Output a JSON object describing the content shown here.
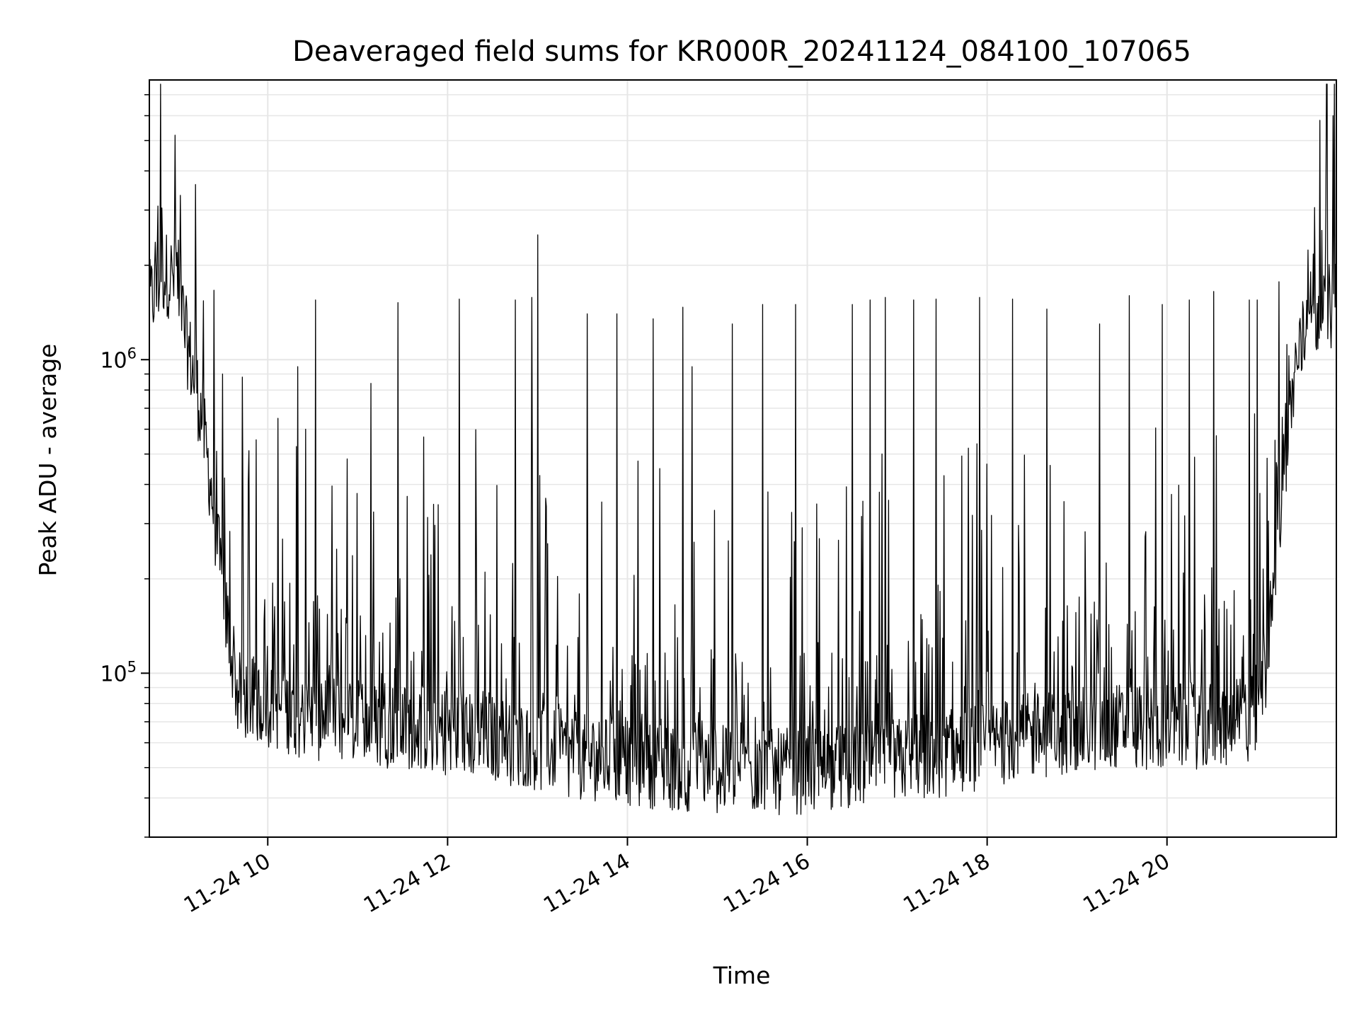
{
  "chart_data": {
    "type": "line",
    "title": "Deaveraged field sums for KR000R_20241124_084100_107065",
    "xlabel": "Time",
    "ylabel": "Peak ADU - average",
    "yscale": "log",
    "grid": true,
    "legend": "none",
    "line_color": "#000000",
    "grid_color": "#e6e6e6",
    "xlim": [
      "2024-11-24 08:41",
      "2024-11-24 21:53"
    ],
    "ylim": [
      30000,
      7800000
    ],
    "x_ticks": [
      {
        "value": "2024-11-24 10:00",
        "label": "11-24 10"
      },
      {
        "value": "2024-11-24 12:00",
        "label": "11-24 12"
      },
      {
        "value": "2024-11-24 14:00",
        "label": "11-24 14"
      },
      {
        "value": "2024-11-24 16:00",
        "label": "11-24 16"
      },
      {
        "value": "2024-11-24 18:00",
        "label": "11-24 18"
      },
      {
        "value": "2024-11-24 20:00",
        "label": "11-24 20"
      }
    ],
    "y_ticks": [
      {
        "value": 100000,
        "base": "10",
        "exp": "5"
      },
      {
        "value": 1000000,
        "base": "10",
        "exp": "6"
      }
    ],
    "baseline_profile": [
      [
        "2024-11-24 08:41",
        1500000
      ],
      [
        "2024-11-24 08:50",
        1900000
      ],
      [
        "2024-11-24 09:00",
        1800000
      ],
      [
        "2024-11-24 09:05",
        1200000
      ],
      [
        "2024-11-24 09:15",
        700000
      ],
      [
        "2024-11-24 09:22",
        400000
      ],
      [
        "2024-11-24 09:30",
        180000
      ],
      [
        "2024-11-24 09:40",
        85000
      ],
      [
        "2024-11-24 10:30",
        72000
      ],
      [
        "2024-11-24 11:30",
        68000
      ],
      [
        "2024-11-24 12:30",
        62000
      ],
      [
        "2024-11-24 13:30",
        54000
      ],
      [
        "2024-11-24 14:30",
        50000
      ],
      [
        "2024-11-24 15:30",
        48000
      ],
      [
        "2024-11-24 16:30",
        50000
      ],
      [
        "2024-11-24 17:30",
        55000
      ],
      [
        "2024-11-24 18:30",
        63000
      ],
      [
        "2024-11-24 19:30",
        68000
      ],
      [
        "2024-11-24 20:30",
        68000
      ],
      [
        "2024-11-24 21:00",
        72000
      ],
      [
        "2024-11-24 21:07",
        110000
      ],
      [
        "2024-11-24 21:12",
        220000
      ],
      [
        "2024-11-24 21:18",
        450000
      ],
      [
        "2024-11-24 21:25",
        900000
      ],
      [
        "2024-11-24 21:35",
        1400000
      ],
      [
        "2024-11-24 21:53",
        1500000
      ]
    ],
    "spikes": [
      [
        "2024-11-24 08:58",
        5200000
      ],
      [
        "2024-11-24 09:30",
        900000
      ],
      [
        "2024-11-24 09:43",
        880000
      ],
      [
        "2024-11-24 10:07",
        650000
      ],
      [
        "2024-11-24 10:20",
        950000
      ],
      [
        "2024-11-24 10:32",
        1550000
      ],
      [
        "2024-11-24 11:09",
        840000
      ],
      [
        "2024-11-24 11:27",
        1520000
      ],
      [
        "2024-11-24 12:08",
        1560000
      ],
      [
        "2024-11-24 12:45",
        1550000
      ],
      [
        "2024-11-24 12:56",
        1580000
      ],
      [
        "2024-11-24 13:00",
        2500000
      ],
      [
        "2024-11-24 13:33",
        1400000
      ],
      [
        "2024-11-24 13:53",
        1400000
      ],
      [
        "2024-11-24 14:17",
        1350000
      ],
      [
        "2024-11-24 14:37",
        1470000
      ],
      [
        "2024-11-24 14:43",
        950000
      ],
      [
        "2024-11-24 15:10",
        1300000
      ],
      [
        "2024-11-24 15:30",
        1500000
      ],
      [
        "2024-11-24 15:52",
        1500000
      ],
      [
        "2024-11-24 16:30",
        1500000
      ],
      [
        "2024-11-24 16:42",
        1550000
      ],
      [
        "2024-11-24 16:52",
        1580000
      ],
      [
        "2024-11-24 17:11",
        1550000
      ],
      [
        "2024-11-24 17:26",
        1560000
      ],
      [
        "2024-11-24 17:55",
        1580000
      ],
      [
        "2024-11-24 18:17",
        1560000
      ],
      [
        "2024-11-24 18:40",
        1450000
      ],
      [
        "2024-11-24 19:15",
        1300000
      ],
      [
        "2024-11-24 19:35",
        1600000
      ],
      [
        "2024-11-24 19:57",
        1500000
      ],
      [
        "2024-11-24 20:15",
        1550000
      ],
      [
        "2024-11-24 20:31",
        1650000
      ],
      [
        "2024-11-24 20:55",
        1550000
      ],
      [
        "2024-11-24 21:00",
        1550000
      ],
      [
        "2024-11-24 21:42",
        5800000
      ],
      [
        "2024-11-24 21:51",
        6000000
      ]
    ]
  }
}
